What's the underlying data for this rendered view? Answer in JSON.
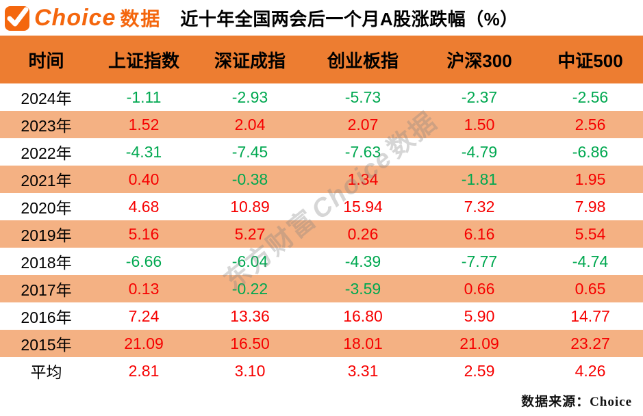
{
  "brand": {
    "name": "Choice",
    "suffix": "数据"
  },
  "title": "近十年全国两会后一个月A股涨跌幅（%）",
  "watermark": {
    "prefix": "东方财富",
    "brand": "Choice",
    "suffix": "数据"
  },
  "source": "数据来源：Choice",
  "colors": {
    "header_bg": "#ED7D31",
    "row_alt_bg": "#F4B183",
    "positive_red": "#F60000",
    "negative_green": "#00A850",
    "brand_orange": "#F4660D"
  },
  "table": {
    "columns": [
      "时间",
      "上证指数",
      "深证成指",
      "创业板指",
      "沪深300",
      "中证500"
    ],
    "rows": [
      {
        "label": "2024年",
        "values": [
          "-1.11",
          "-2.93",
          "-5.73",
          "-2.37",
          "-2.56"
        ]
      },
      {
        "label": "2023年",
        "values": [
          "1.52",
          "2.04",
          "2.07",
          "1.50",
          "2.56"
        ]
      },
      {
        "label": "2022年",
        "values": [
          "-4.31",
          "-7.45",
          "-7.63",
          "-4.79",
          "-6.86"
        ]
      },
      {
        "label": "2021年",
        "values": [
          "0.40",
          "-0.38",
          "1.34",
          "-1.81",
          "1.95"
        ]
      },
      {
        "label": "2020年",
        "values": [
          "4.68",
          "10.89",
          "15.94",
          "7.32",
          "7.98"
        ]
      },
      {
        "label": "2019年",
        "values": [
          "5.16",
          "5.27",
          "0.26",
          "6.16",
          "5.54"
        ]
      },
      {
        "label": "2018年",
        "values": [
          "-6.66",
          "-6.04",
          "-4.39",
          "-7.77",
          "-4.74"
        ]
      },
      {
        "label": "2017年",
        "values": [
          "0.13",
          "-0.22",
          "-3.59",
          "0.66",
          "0.65"
        ]
      },
      {
        "label": "2016年",
        "values": [
          "7.24",
          "13.36",
          "16.80",
          "5.90",
          "14.77"
        ]
      },
      {
        "label": "2015年",
        "values": [
          "21.09",
          "16.50",
          "18.01",
          "21.09",
          "23.27"
        ]
      },
      {
        "label": "平均",
        "values": [
          "2.81",
          "3.10",
          "3.31",
          "2.59",
          "4.26"
        ]
      }
    ]
  },
  "chart_data": {
    "type": "table",
    "title": "近十年全国两会后一个月A股涨跌幅（%）",
    "categories": [
      "2024年",
      "2023年",
      "2022年",
      "2021年",
      "2020年",
      "2019年",
      "2018年",
      "2017年",
      "2016年",
      "2015年",
      "平均"
    ],
    "series": [
      {
        "name": "上证指数",
        "values": [
          -1.11,
          1.52,
          -4.31,
          0.4,
          4.68,
          5.16,
          -6.66,
          0.13,
          7.24,
          21.09,
          2.81
        ]
      },
      {
        "name": "深证成指",
        "values": [
          -2.93,
          2.04,
          -7.45,
          -0.38,
          10.89,
          5.27,
          -6.04,
          -0.22,
          13.36,
          16.5,
          3.1
        ]
      },
      {
        "name": "创业板指",
        "values": [
          -5.73,
          2.07,
          -7.63,
          1.34,
          15.94,
          0.26,
          -4.39,
          -3.59,
          16.8,
          18.01,
          3.31
        ]
      },
      {
        "name": "沪深300",
        "values": [
          -2.37,
          1.5,
          -4.79,
          -1.81,
          7.32,
          6.16,
          -7.77,
          0.66,
          5.9,
          21.09,
          2.59
        ]
      },
      {
        "name": "中证500",
        "values": [
          -2.56,
          2.56,
          -6.86,
          1.95,
          7.98,
          5.54,
          -4.74,
          0.65,
          14.77,
          23.27,
          4.26
        ]
      }
    ],
    "notes": "negative values shown green, positive values shown red"
  }
}
